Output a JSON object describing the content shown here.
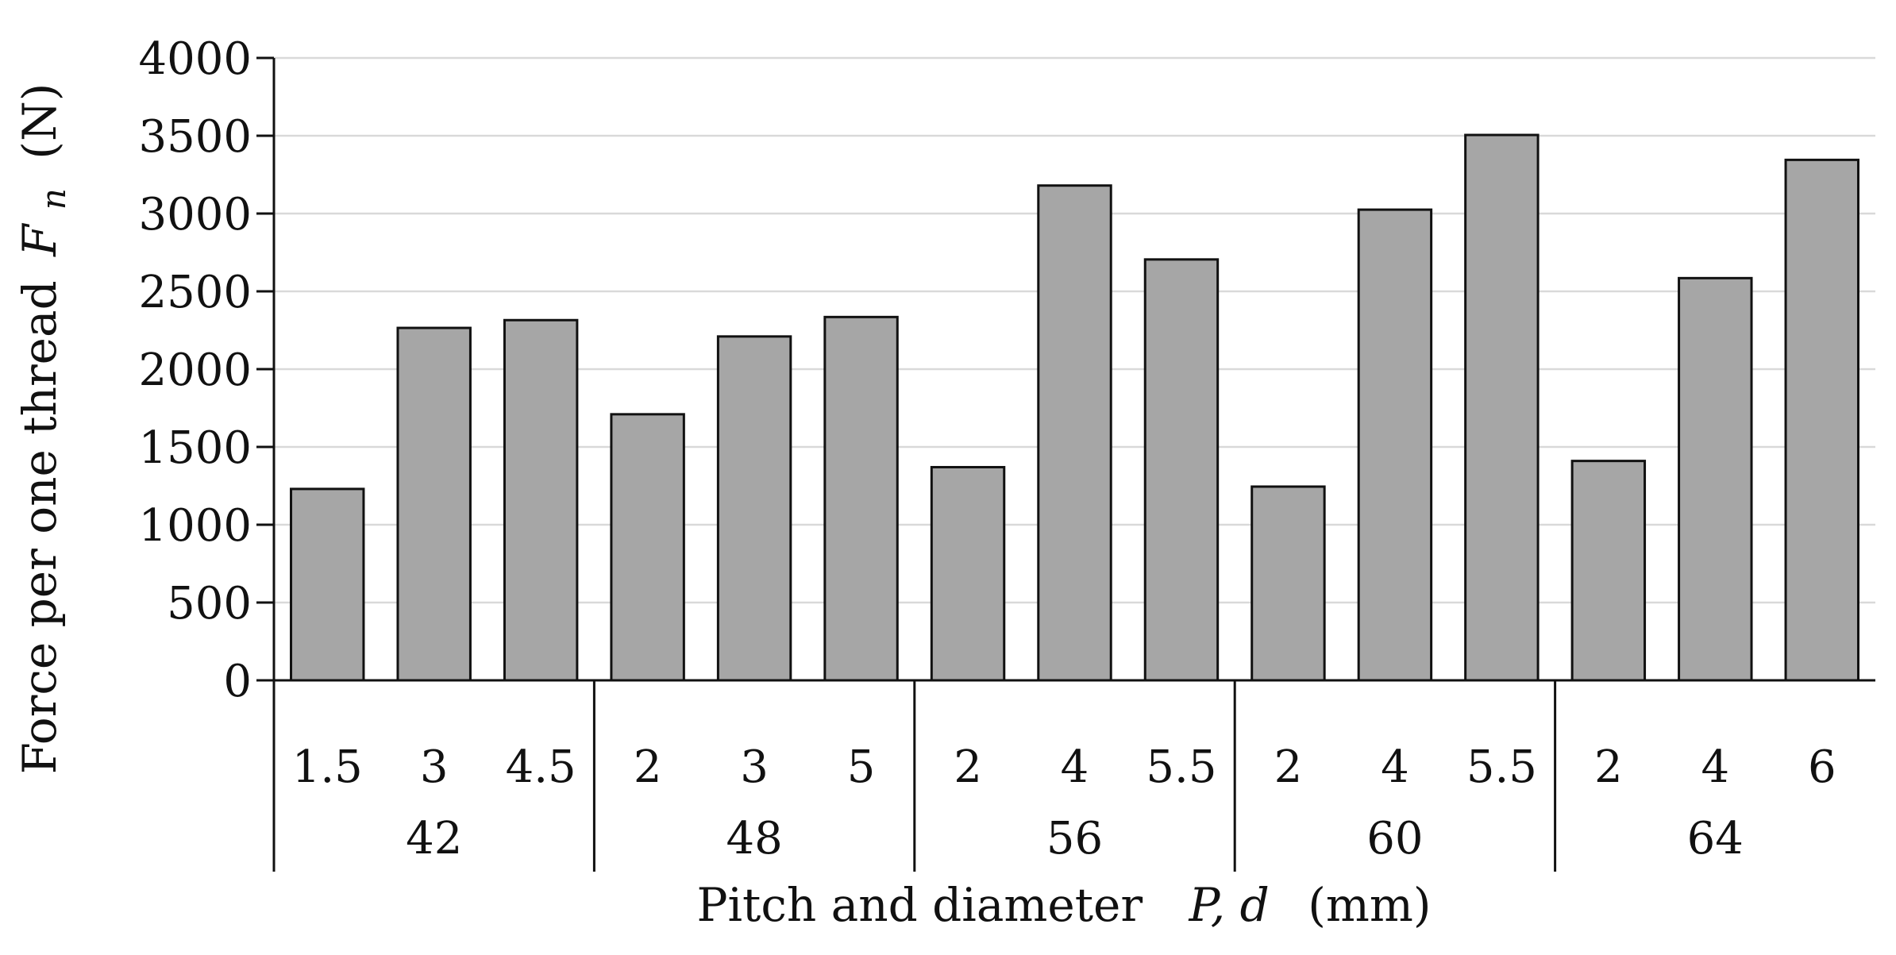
{
  "chart_data": {
    "type": "bar",
    "title": "",
    "ylabel": {
      "text": "Force per one thread",
      "symbol": "F",
      "subscript": "n",
      "unit": "(N)"
    },
    "xlabel": {
      "text": "Pitch and diameter",
      "symbol": "P, d",
      "unit": "(mm)"
    },
    "ylim": [
      0,
      4000
    ],
    "yticks": [
      0,
      500,
      1000,
      1500,
      2000,
      2500,
      3000,
      3500,
      4000
    ],
    "grid": true,
    "bar_color": "#a6a6a6",
    "groups": [
      {
        "label": "42",
        "pitches": [
          "1.5",
          "3",
          "4.5"
        ],
        "values": [
          1230,
          2265,
          2315
        ]
      },
      {
        "label": "48",
        "pitches": [
          "2",
          "3",
          "5"
        ],
        "values": [
          1710,
          2210,
          2335
        ]
      },
      {
        "label": "56",
        "pitches": [
          "2",
          "4",
          "5.5"
        ],
        "values": [
          1370,
          3180,
          2705
        ]
      },
      {
        "label": "60",
        "pitches": [
          "2",
          "4",
          "5.5"
        ],
        "values": [
          1245,
          3025,
          3505
        ]
      },
      {
        "label": "64",
        "pitches": [
          "2",
          "4",
          "6"
        ],
        "values": [
          1410,
          2585,
          3345
        ]
      }
    ]
  }
}
